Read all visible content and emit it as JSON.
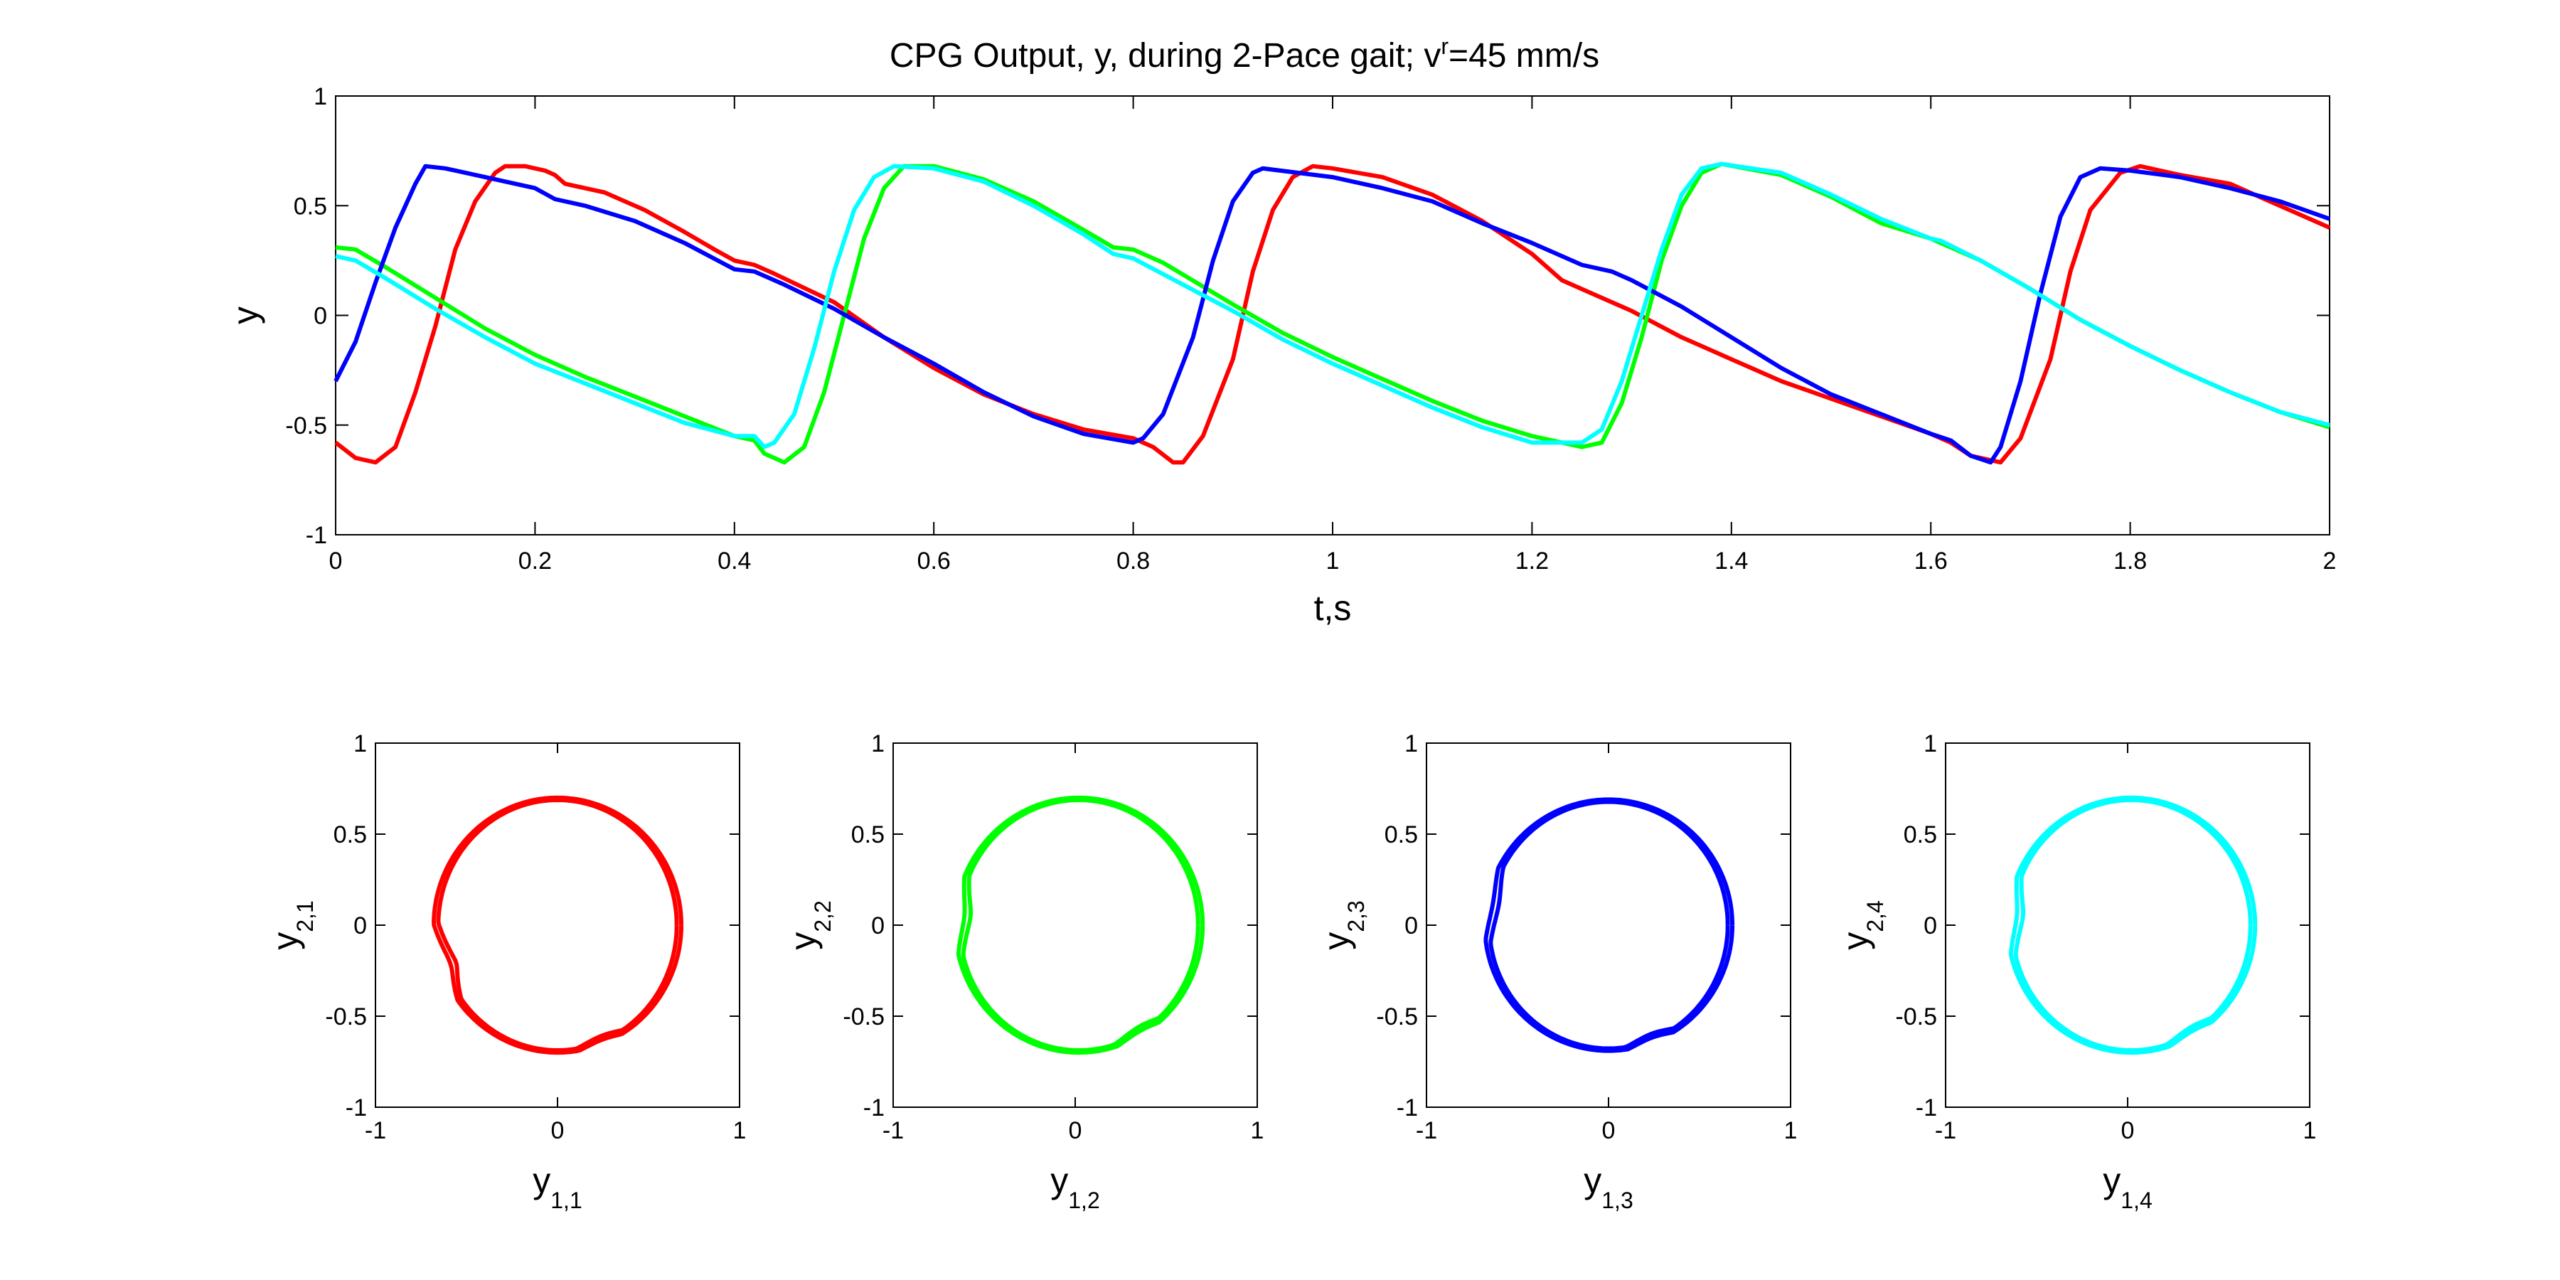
{
  "title": {
    "prefix": "CPG Output, y, during 2-Pace gait; v",
    "superscript": "r",
    "suffix": "=45 mm/s"
  },
  "colors": {
    "leg1": "#ff0000",
    "leg2": "#00ff00",
    "leg3": "#0000ff",
    "leg4": "#00ffff",
    "axes": "#000000",
    "background": "#ffffff"
  },
  "chart_data": [
    {
      "type": "line",
      "panel": "time-series",
      "xlabel": "t,s",
      "ylabel": "y",
      "xlim": [
        0,
        2
      ],
      "ylim": [
        -1,
        1
      ],
      "xticks": [
        "0",
        "0.2",
        "0.4",
        "0.6",
        "0.8",
        "1",
        "1.2",
        "1.4",
        "1.6",
        "1.8",
        "2"
      ],
      "yticks": [
        "-1",
        "-0.5",
        "0",
        "0.5",
        "1"
      ],
      "grid": false,
      "series": [
        {
          "color": "#ff0000",
          "points": [
            [
              0,
              -0.58
            ],
            [
              0.02,
              -0.65
            ],
            [
              0.04,
              -0.67
            ],
            [
              0.06,
              -0.6
            ],
            [
              0.08,
              -0.35
            ],
            [
              0.1,
              -0.05
            ],
            [
              0.12,
              0.3
            ],
            [
              0.14,
              0.52
            ],
            [
              0.16,
              0.65
            ],
            [
              0.17,
              0.68
            ],
            [
              0.19,
              0.68
            ],
            [
              0.21,
              0.66
            ],
            [
              0.22,
              0.64
            ],
            [
              0.23,
              0.6
            ],
            [
              0.27,
              0.56
            ],
            [
              0.31,
              0.48
            ],
            [
              0.35,
              0.38
            ],
            [
              0.38,
              0.3
            ],
            [
              0.4,
              0.25
            ],
            [
              0.42,
              0.23
            ],
            [
              0.44,
              0.19
            ],
            [
              0.5,
              0.06
            ],
            [
              0.55,
              -0.1
            ],
            [
              0.6,
              -0.24
            ],
            [
              0.65,
              -0.36
            ],
            [
              0.7,
              -0.45
            ],
            [
              0.75,
              -0.52
            ],
            [
              0.8,
              -0.56
            ],
            [
              0.82,
              -0.6
            ],
            [
              0.84,
              -0.67
            ],
            [
              0.85,
              -0.67
            ],
            [
              0.87,
              -0.55
            ],
            [
              0.9,
              -0.2
            ],
            [
              0.92,
              0.2
            ],
            [
              0.94,
              0.48
            ],
            [
              0.96,
              0.63
            ],
            [
              0.98,
              0.68
            ],
            [
              1,
              0.67
            ],
            [
              1.05,
              0.63
            ],
            [
              1.1,
              0.55
            ],
            [
              1.15,
              0.43
            ],
            [
              1.2,
              0.28
            ],
            [
              1.23,
              0.16
            ],
            [
              1.25,
              0.12
            ],
            [
              1.3,
              0.02
            ],
            [
              1.35,
              -0.1
            ],
            [
              1.4,
              -0.2
            ],
            [
              1.45,
              -0.3
            ],
            [
              1.5,
              -0.38
            ],
            [
              1.55,
              -0.46
            ],
            [
              1.6,
              -0.54
            ],
            [
              1.62,
              -0.58
            ],
            [
              1.64,
              -0.64
            ],
            [
              1.67,
              -0.67
            ],
            [
              1.69,
              -0.56
            ],
            [
              1.72,
              -0.2
            ],
            [
              1.74,
              0.2
            ],
            [
              1.76,
              0.48
            ],
            [
              1.79,
              0.65
            ],
            [
              1.81,
              0.68
            ],
            [
              1.85,
              0.64
            ],
            [
              1.9,
              0.6
            ],
            [
              1.95,
              0.5
            ],
            [
              2,
              0.4
            ]
          ]
        },
        {
          "color": "#00ff00",
          "points": [
            [
              0,
              0.31
            ],
            [
              0.02,
              0.3
            ],
            [
              0.05,
              0.22
            ],
            [
              0.1,
              0.08
            ],
            [
              0.15,
              -0.06
            ],
            [
              0.2,
              -0.18
            ],
            [
              0.25,
              -0.28
            ],
            [
              0.3,
              -0.37
            ],
            [
              0.35,
              -0.46
            ],
            [
              0.4,
              -0.55
            ],
            [
              0.42,
              -0.57
            ],
            [
              0.43,
              -0.63
            ],
            [
              0.45,
              -0.67
            ],
            [
              0.47,
              -0.6
            ],
            [
              0.49,
              -0.35
            ],
            [
              0.51,
              0
            ],
            [
              0.53,
              0.35
            ],
            [
              0.55,
              0.58
            ],
            [
              0.57,
              0.68
            ],
            [
              0.6,
              0.68
            ],
            [
              0.65,
              0.62
            ],
            [
              0.7,
              0.52
            ],
            [
              0.75,
              0.39
            ],
            [
              0.78,
              0.31
            ],
            [
              0.8,
              0.3
            ],
            [
              0.83,
              0.24
            ],
            [
              0.9,
              0.05
            ],
            [
              0.95,
              -0.08
            ],
            [
              1,
              -0.19
            ],
            [
              1.05,
              -0.29
            ],
            [
              1.1,
              -0.39
            ],
            [
              1.15,
              -0.48
            ],
            [
              1.2,
              -0.55
            ],
            [
              1.25,
              -0.6
            ],
            [
              1.27,
              -0.58
            ],
            [
              1.29,
              -0.4
            ],
            [
              1.31,
              -0.1
            ],
            [
              1.33,
              0.25
            ],
            [
              1.35,
              0.5
            ],
            [
              1.37,
              0.65
            ],
            [
              1.39,
              0.69
            ],
            [
              1.45,
              0.64
            ],
            [
              1.5,
              0.54
            ],
            [
              1.55,
              0.42
            ],
            [
              1.6,
              0.35
            ],
            [
              1.61,
              0.33
            ],
            [
              1.65,
              0.25
            ],
            [
              1.7,
              0.12
            ],
            [
              1.75,
              -0.02
            ],
            [
              1.8,
              -0.14
            ],
            [
              1.85,
              -0.25
            ],
            [
              1.9,
              -0.35
            ],
            [
              1.95,
              -0.44
            ],
            [
              2,
              -0.51
            ]
          ]
        },
        {
          "color": "#0000ff",
          "points": [
            [
              0,
              -0.3
            ],
            [
              0.02,
              -0.12
            ],
            [
              0.04,
              0.15
            ],
            [
              0.06,
              0.4
            ],
            [
              0.08,
              0.6
            ],
            [
              0.09,
              0.68
            ],
            [
              0.11,
              0.67
            ],
            [
              0.15,
              0.63
            ],
            [
              0.2,
              0.58
            ],
            [
              0.22,
              0.53
            ],
            [
              0.25,
              0.5
            ],
            [
              0.3,
              0.43
            ],
            [
              0.35,
              0.33
            ],
            [
              0.4,
              0.21
            ],
            [
              0.42,
              0.2
            ],
            [
              0.45,
              0.14
            ],
            [
              0.5,
              0.03
            ],
            [
              0.55,
              -0.1
            ],
            [
              0.6,
              -0.22
            ],
            [
              0.65,
              -0.35
            ],
            [
              0.7,
              -0.46
            ],
            [
              0.75,
              -0.54
            ],
            [
              0.8,
              -0.58
            ],
            [
              0.81,
              -0.56
            ],
            [
              0.83,
              -0.45
            ],
            [
              0.86,
              -0.1
            ],
            [
              0.88,
              0.25
            ],
            [
              0.9,
              0.52
            ],
            [
              0.92,
              0.65
            ],
            [
              0.93,
              0.67
            ],
            [
              1,
              0.63
            ],
            [
              1.05,
              0.58
            ],
            [
              1.1,
              0.52
            ],
            [
              1.15,
              0.42
            ],
            [
              1.2,
              0.33
            ],
            [
              1.25,
              0.23
            ],
            [
              1.28,
              0.2
            ],
            [
              1.3,
              0.16
            ],
            [
              1.35,
              0.04
            ],
            [
              1.4,
              -0.1
            ],
            [
              1.45,
              -0.24
            ],
            [
              1.5,
              -0.36
            ],
            [
              1.55,
              -0.45
            ],
            [
              1.6,
              -0.54
            ],
            [
              1.62,
              -0.57
            ],
            [
              1.64,
              -0.64
            ],
            [
              1.66,
              -0.67
            ],
            [
              1.67,
              -0.6
            ],
            [
              1.69,
              -0.3
            ],
            [
              1.71,
              0.1
            ],
            [
              1.73,
              0.45
            ],
            [
              1.75,
              0.63
            ],
            [
              1.77,
              0.67
            ],
            [
              1.8,
              0.66
            ],
            [
              1.85,
              0.63
            ],
            [
              1.9,
              0.58
            ],
            [
              1.95,
              0.52
            ],
            [
              2,
              0.44
            ]
          ]
        },
        {
          "color": "#00ffff",
          "points": [
            [
              0,
              0.27
            ],
            [
              0.02,
              0.25
            ],
            [
              0.05,
              0.17
            ],
            [
              0.1,
              0.03
            ],
            [
              0.15,
              -0.1
            ],
            [
              0.2,
              -0.22
            ],
            [
              0.25,
              -0.31
            ],
            [
              0.3,
              -0.4
            ],
            [
              0.35,
              -0.49
            ],
            [
              0.4,
              -0.55
            ],
            [
              0.42,
              -0.55
            ],
            [
              0.43,
              -0.6
            ],
            [
              0.44,
              -0.58
            ],
            [
              0.46,
              -0.45
            ],
            [
              0.48,
              -0.15
            ],
            [
              0.5,
              0.2
            ],
            [
              0.52,
              0.48
            ],
            [
              0.54,
              0.63
            ],
            [
              0.56,
              0.68
            ],
            [
              0.6,
              0.67
            ],
            [
              0.65,
              0.61
            ],
            [
              0.7,
              0.5
            ],
            [
              0.75,
              0.37
            ],
            [
              0.78,
              0.28
            ],
            [
              0.8,
              0.26
            ],
            [
              0.85,
              0.14
            ],
            [
              0.9,
              0.02
            ],
            [
              0.95,
              -0.11
            ],
            [
              1,
              -0.22
            ],
            [
              1.05,
              -0.32
            ],
            [
              1.1,
              -0.42
            ],
            [
              1.15,
              -0.51
            ],
            [
              1.2,
              -0.58
            ],
            [
              1.25,
              -0.58
            ],
            [
              1.26,
              -0.55
            ],
            [
              1.27,
              -0.52
            ],
            [
              1.29,
              -0.3
            ],
            [
              1.31,
              0
            ],
            [
              1.33,
              0.3
            ],
            [
              1.35,
              0.55
            ],
            [
              1.37,
              0.67
            ],
            [
              1.39,
              0.69
            ],
            [
              1.45,
              0.65
            ],
            [
              1.5,
              0.55
            ],
            [
              1.55,
              0.44
            ],
            [
              1.6,
              0.35
            ],
            [
              1.61,
              0.34
            ],
            [
              1.65,
              0.25
            ],
            [
              1.7,
              0.12
            ],
            [
              1.75,
              -0.02
            ],
            [
              1.8,
              -0.14
            ],
            [
              1.85,
              -0.25
            ],
            [
              1.9,
              -0.35
            ],
            [
              1.95,
              -0.44
            ],
            [
              2,
              -0.5
            ]
          ]
        }
      ]
    },
    {
      "type": "line",
      "panel": "phase-1",
      "xlabel_main": "y",
      "xlabel_sub": "1,1",
      "ylabel_main": "y",
      "ylabel_sub": "2,1",
      "xlim": [
        -1,
        1
      ],
      "ylim": [
        -1,
        1
      ],
      "xticks": [
        "-1",
        "0",
        "1"
      ],
      "yticks": [
        "-1",
        "-0.5",
        "0",
        "0.5",
        "1"
      ],
      "color": "#ff0000",
      "loop": {
        "rx": 0.68,
        "ry": 0.7,
        "cx": 0,
        "cy": 0,
        "turns": 2.2,
        "dent": [
          -0.6,
          -0.2
        ],
        "dent2": [
          0.2,
          -0.55
        ]
      }
    },
    {
      "type": "line",
      "panel": "phase-2",
      "xlabel_main": "y",
      "xlabel_sub": "1,2",
      "ylabel_main": "y",
      "ylabel_sub": "2,2",
      "xlim": [
        -1,
        1
      ],
      "ylim": [
        -1,
        1
      ],
      "xticks": [
        "-1",
        "0",
        "1"
      ],
      "yticks": [
        "-1",
        "-0.5",
        "0",
        "0.5",
        "1"
      ],
      "color": "#00ff00",
      "loop": {
        "rx": 0.68,
        "ry": 0.7,
        "cx": 0.02,
        "cy": 0,
        "turns": 2.2,
        "dent": [
          -0.58,
          0.05
        ],
        "dent2": [
          0.3,
          -0.52
        ]
      }
    },
    {
      "type": "line",
      "panel": "phase-3",
      "xlabel_main": "y",
      "xlabel_sub": "1,3",
      "ylabel_main": "y",
      "ylabel_sub": "2,3",
      "xlim": [
        -1,
        1
      ],
      "ylim": [
        -1,
        1
      ],
      "xticks": [
        "-1",
        "0",
        "1"
      ],
      "yticks": [
        "-1",
        "-0.5",
        "0",
        "0.5",
        "1"
      ],
      "color": "#0000ff",
      "loop": {
        "rx": 0.68,
        "ry": 0.69,
        "cx": 0,
        "cy": 0,
        "turns": 2.1,
        "dent": [
          -0.55,
          0.1
        ],
        "dent2": [
          0.2,
          -0.55
        ]
      }
    },
    {
      "type": "line",
      "panel": "phase-4",
      "xlabel_main": "y",
      "xlabel_sub": "1,4",
      "ylabel_main": "y",
      "ylabel_sub": "2,4",
      "xlim": [
        -1,
        1
      ],
      "ylim": [
        -1,
        1
      ],
      "xticks": [
        "-1",
        "0",
        "1"
      ],
      "yticks": [
        "-1",
        "-0.5",
        "0",
        "0.5",
        "1"
      ],
      "color": "#00ffff",
      "loop": {
        "rx": 0.68,
        "ry": 0.7,
        "cx": 0.02,
        "cy": 0,
        "turns": 2.2,
        "dent": [
          -0.58,
          0.05
        ],
        "dent2": [
          0.3,
          -0.52
        ]
      }
    }
  ]
}
